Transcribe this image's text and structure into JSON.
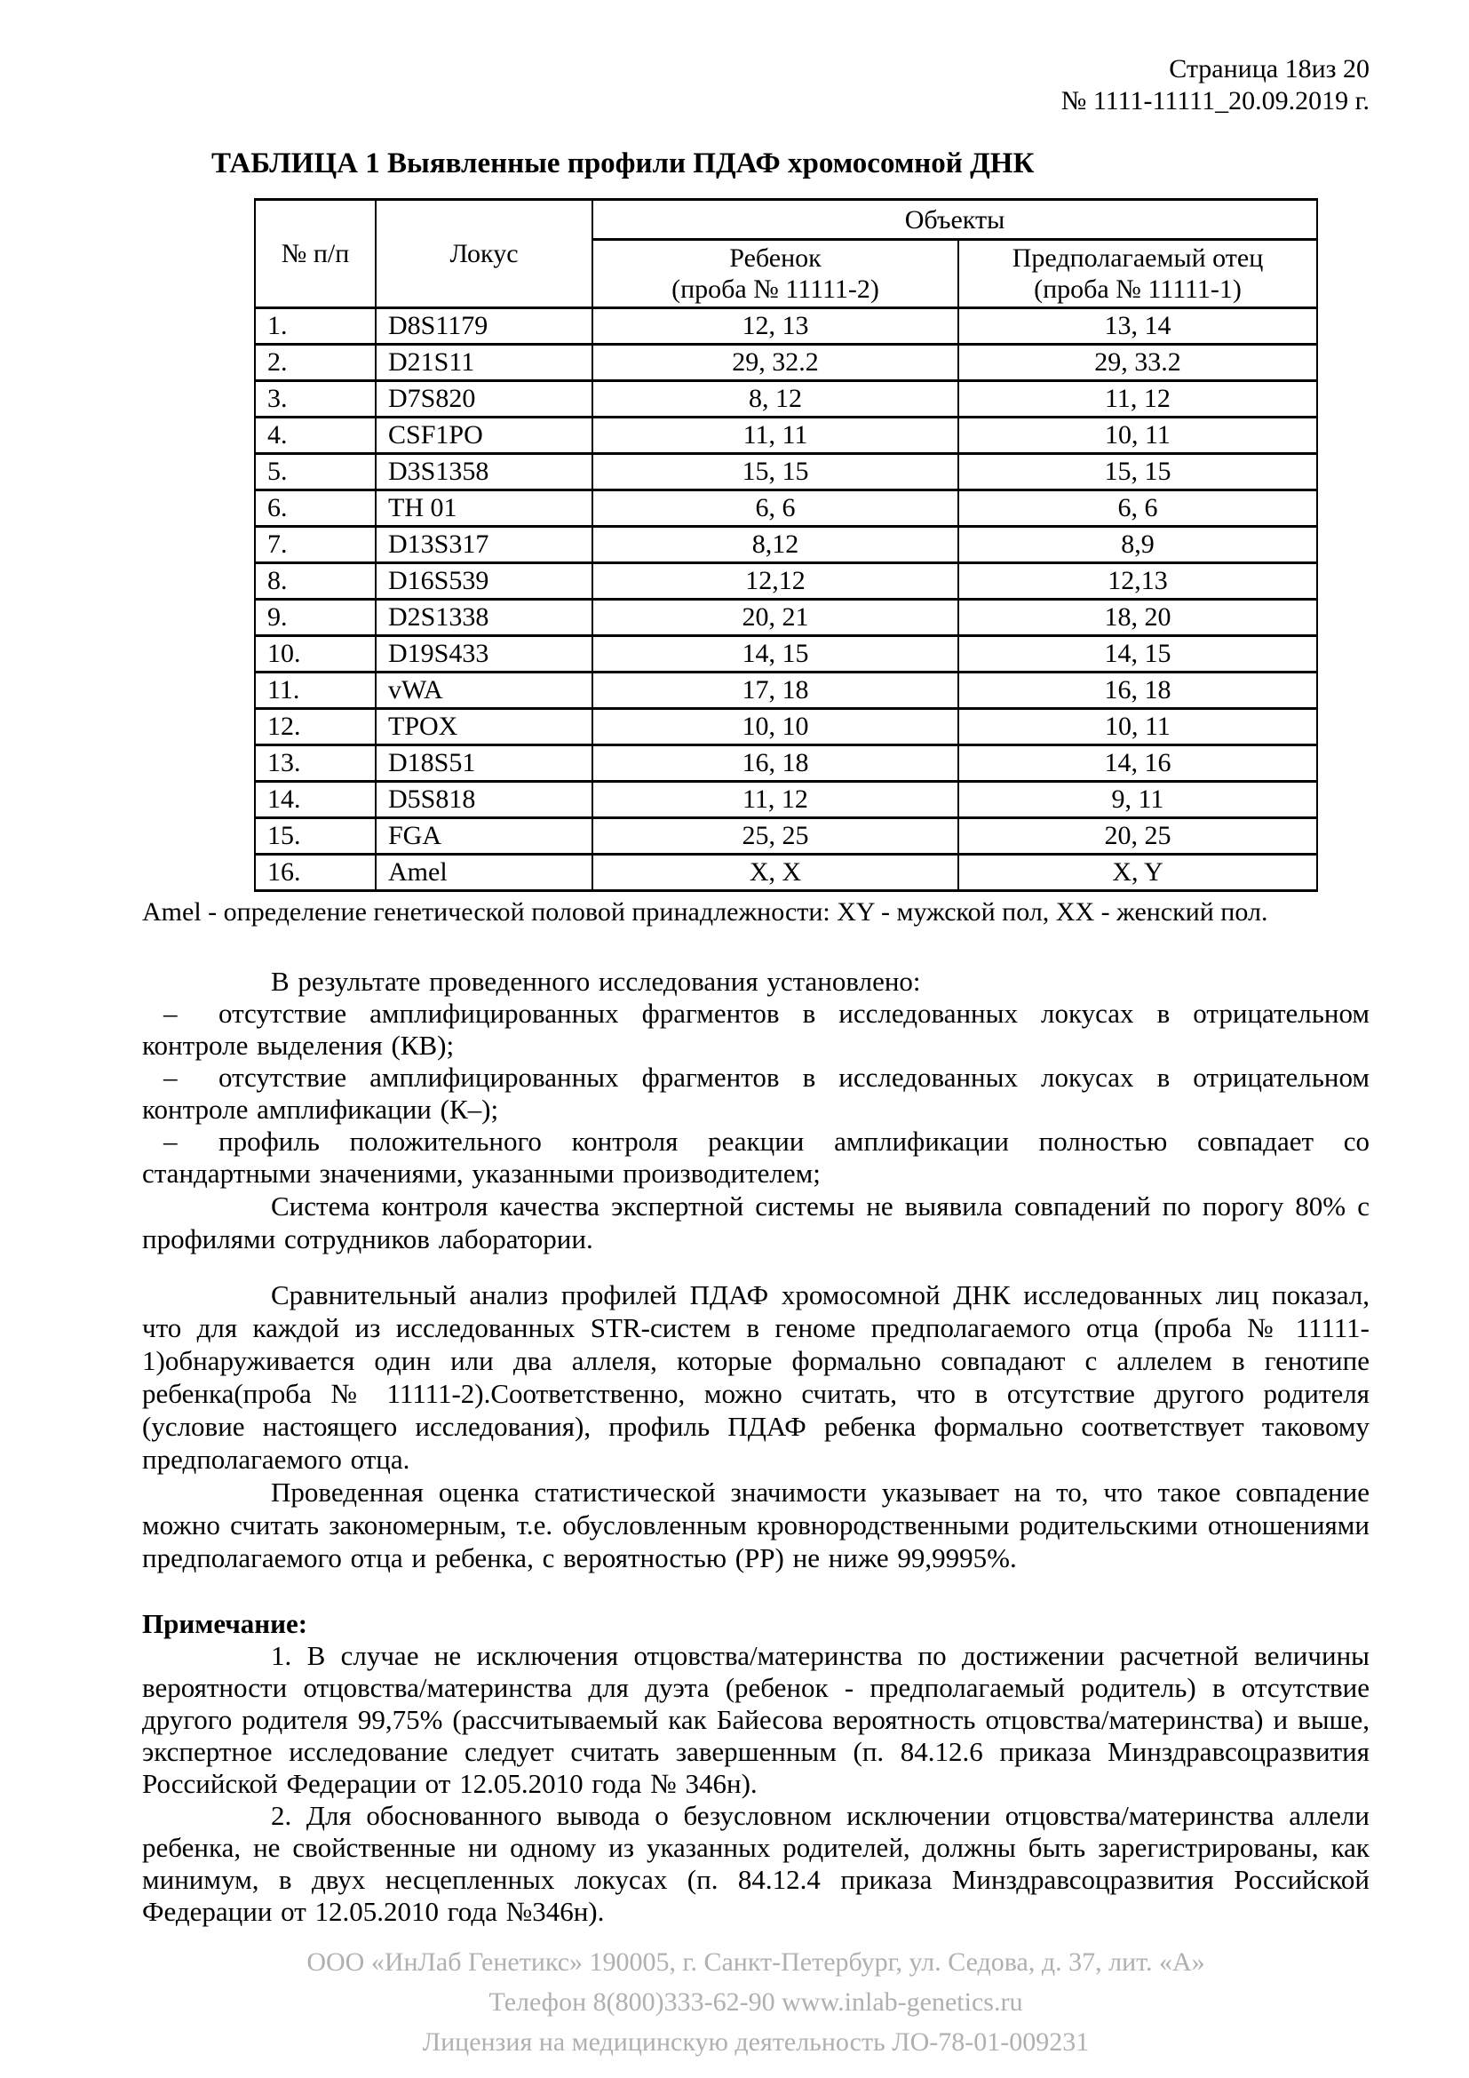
{
  "header": {
    "page_line": "Страница 18из 20",
    "doc_line": "№ 1111-11111_20.09.2019 г."
  },
  "table": {
    "title": "ТАБЛИЦА 1 Выявленные профили ПДАФ хромосомной ДНК",
    "headers": {
      "num": "№  п/п",
      "locus": "Локус",
      "objects": "Объекты",
      "child_name": "Ребенок",
      "child_probe": "(проба № 11111-2)",
      "father_name": "Предполагаемый отец",
      "father_probe": "(проба № 11111-1)"
    },
    "rows": [
      {
        "num": "1.",
        "locus": "D8S1179",
        "child": "12, 13",
        "father": "13, 14"
      },
      {
        "num": "2.",
        "locus": "D21S11",
        "child": "29, 32.2",
        "father": "29, 33.2"
      },
      {
        "num": "3.",
        "locus": "D7S820",
        "child": "8, 12",
        "father": "11, 12"
      },
      {
        "num": "4.",
        "locus": "CSF1PO",
        "child": "11, 11",
        "father": "10, 11"
      },
      {
        "num": "5.",
        "locus": "D3S1358",
        "child": "15, 15",
        "father": "15, 15"
      },
      {
        "num": "6.",
        "locus": "TH 01",
        "child": "6, 6",
        "father": "6, 6"
      },
      {
        "num": "7.",
        "locus": "D13S317",
        "child": "8,12",
        "father": "8,9"
      },
      {
        "num": "8.",
        "locus": "D16S539",
        "child": "12,12",
        "father": "12,13"
      },
      {
        "num": "9.",
        "locus": "D2S1338",
        "child": "20, 21",
        "father": "18, 20"
      },
      {
        "num": "10.",
        "locus": "D19S433",
        "child": "14, 15",
        "father": "14, 15"
      },
      {
        "num": "11.",
        "locus": "vWA",
        "child": "17, 18",
        "father": "16, 18"
      },
      {
        "num": "12.",
        "locus": "TPOX",
        "child": "10, 10",
        "father": "10, 11"
      },
      {
        "num": "13.",
        "locus": "D18S51",
        "child": "16, 18",
        "father": "14, 16"
      },
      {
        "num": "14.",
        "locus": "D5S818",
        "child": "11, 12",
        "father": "9, 11"
      },
      {
        "num": "15.",
        "locus": "FGA",
        "child": "25, 25",
        "father": "20, 25"
      },
      {
        "num": "16.",
        "locus": "Amel",
        "child": "X, X",
        "father": "X, Y"
      }
    ]
  },
  "amel_note": "Amel - определение генетической половой принадлежности: XY - мужской пол, XX - женский пол.",
  "results_intro": "В результате проведенного исследования установлено:",
  "bullets": [
    {
      "marker": "–",
      "text": "отсутствие амплифицированных фрагментов в исследованных локусах в отрицательном контроле выделения (КВ);"
    },
    {
      "marker": "–",
      "text": "отсутствие амплифицированных фрагментов в исследованных локусах в отрицательном контроле амплификации (К–);"
    },
    {
      "marker": "–",
      "text": "профиль положительного контроля реакции амплификации полностью совпадает со стандартными значениями, указанными производителем;"
    }
  ],
  "qc_paragraph": "Система контроля качества экспертной системы не выявила совпадений по порогу 80% с профилями сотрудников лаборатории.",
  "analysis_paragraph": "Сравнительный анализ профилей ПДАФ хромосомной ДНК исследованных лиц показал, что для каждой из исследованных STR-систем в геноме предполагаемого отца (проба № 11111-1)обнаруживается один или два аллеля, которые формально совпадают с аллелем в генотипе ребенка(проба № 11111-2).Соответственно, можно считать, что в отсутствие другого родителя (условие настоящего исследования), профиль ПДАФ ребенка формально соответствует таковому предполагаемого отца.",
  "stats_paragraph": "Проведенная оценка статистической значимости указывает на то, что такое совпадение можно считать закономерным, т.е. обусловленным кровнородственными родительскими отношениями предполагаемого отца и ребенка, с вероятностью (РР) не ниже 99,9995%.",
  "note_title": "Примечание:",
  "notes": [
    "1. В случае не исключения отцовства/материнства по достижении расчетной величины вероятности отцовства/материнства для дуэта (ребенок - предполагаемый родитель) в отсутствие другого родителя 99,75% (рассчитываемый как Байесова вероятность отцовства/материнства) и выше, экспертное исследование следует считать завершенным (п. 84.12.6 приказа Минздравсоцразвития Российской Федерации от 12.05.2010 года № 346н).",
    "2. Для обоснованного вывода о безусловном исключении отцовства/материнства аллели ребенка, не свойственные ни одному из указанных родителей, должны быть зарегистрированы, как минимум, в двух несцепленных локусах (п. 84.12.4 приказа Минздравсоцразвития Российской Федерации от 12.05.2010 года №346н)."
  ],
  "footer": {
    "line1": "ООО «ИнЛаб Генетикс» 190005, г. Санкт-Петербург, ул. Седова, д. 37, лит. «А»",
    "line2": "Телефон 8(800)333-62-90 www.inlab-genetics.ru",
    "line3": "Лицензия на медицинскую деятельность ЛО-78-01-009231"
  }
}
